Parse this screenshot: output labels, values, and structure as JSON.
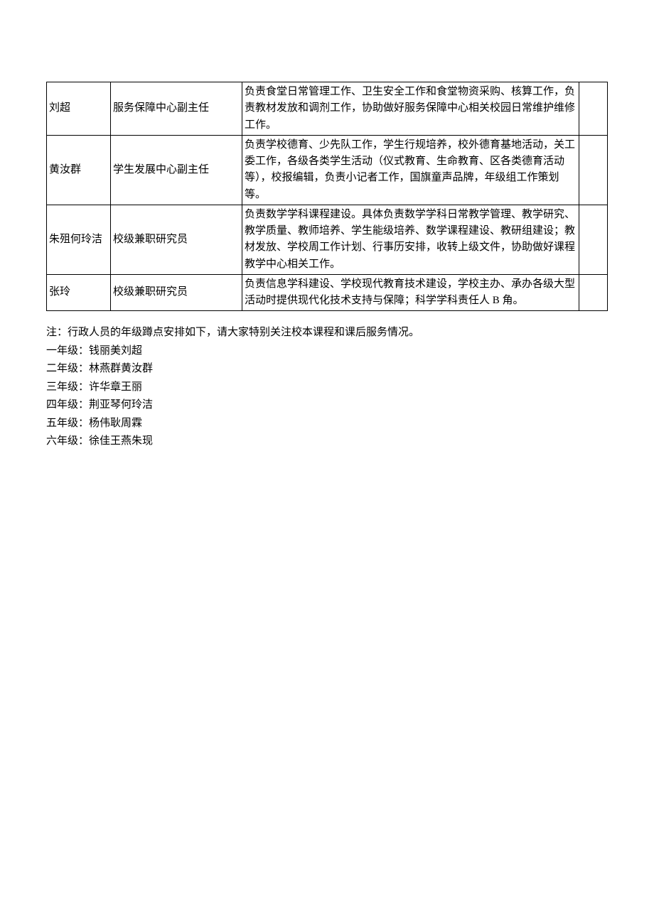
{
  "table": {
    "columns": {
      "name_width": 90,
      "title_width": 185,
      "empty_width": 40
    },
    "rows": [
      {
        "name": "刘超",
        "title": "服务保障中心副主任",
        "desc": "负责食堂日常管理工作、卫生安全工作和食堂物资采购、核算工作，负责教材发放和调剂工作，协助做好服务保障中心相关校园日常维护维修工作。",
        "empty": ""
      },
      {
        "name": "黄汝群",
        "title": "学生发展中心副主任",
        "desc": "负责学校德育、少先队工作，学生行规培养，校外德育基地活动，关工委工作，各级各类学生活动（仪式教育、生命教育、区各类德育活动等），校报编辑，负责小记者工作，国旗童声品牌，年级组工作策划等。",
        "empty": ""
      },
      {
        "name": "朱殂何玲洁",
        "title": "校级兼职研究员",
        "desc": "负责数学学科课程建设。具体负责数学学科日常教学管理、教学研究、教学质量、教师培养、学生能级培养、数学课程建设、教研组建设；教材发放、学校周工作计划、行事历安排，收转上级文件，协助做好课程教学中心相关工作。",
        "empty": ""
      },
      {
        "name": "张玲",
        "title": "校级兼职研究员",
        "desc": "负责信息学科建设、学校现代教育技术建设，学校主办、承办各级大型活动时提供现代化技术支持与保障；科学学科责任人 B 角。",
        "empty": ""
      }
    ]
  },
  "notes": {
    "intro": "注：行政人员的年级蹲点安排如下，请大家特别关注校本课程和课后服务情况。",
    "lines": [
      "一年级：钱丽美刘超",
      "二年级：林燕群黄汝群",
      "三年级：许华章王丽",
      "四年级：荆亚琴何玲洁",
      "五年级：杨伟耿周霖",
      "六年级：徐佳王燕朱现"
    ]
  },
  "style": {
    "background_color": "#ffffff",
    "text_color": "#000000",
    "border_color": "#000000",
    "font_size": 15,
    "font_family": "SimSun"
  }
}
